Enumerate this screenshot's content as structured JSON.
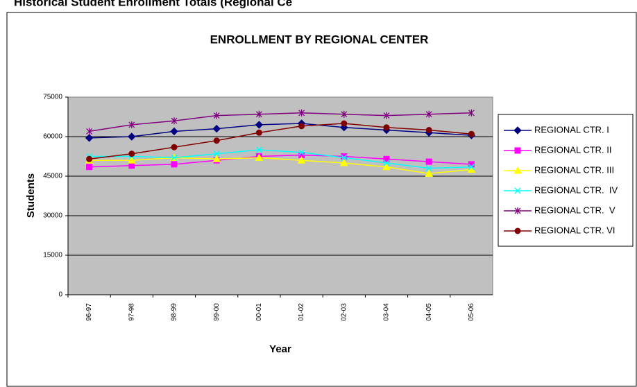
{
  "header": {
    "caption": "Historical Student Enrollment Totals (Regional Ce"
  },
  "chart_data": {
    "type": "line",
    "title": "ENROLLMENT BY REGIONAL CENTER",
    "x_label": "Year",
    "y_label": "Students",
    "categories": [
      "96-97",
      "97-98",
      "98-99",
      "99-00",
      "00-01",
      "01-02",
      "02-03",
      "03-04",
      "04-05",
      "05-06"
    ],
    "ylim": [
      0,
      75000
    ],
    "yticks": [
      0,
      15000,
      30000,
      45000,
      60000,
      75000
    ],
    "grid": true,
    "legend": "right",
    "series": [
      {
        "name": "REGIONAL CTR. I",
        "color": "#000080",
        "marker": "diamond",
        "values": [
          59500,
          60000,
          62000,
          63000,
          64500,
          65000,
          63500,
          62500,
          61500,
          60500
        ]
      },
      {
        "name": "REGIONAL CTR. II",
        "color": "#ff00ff",
        "marker": "square",
        "values": [
          48500,
          49000,
          49500,
          51000,
          52500,
          53000,
          52500,
          51500,
          50500,
          49500
        ]
      },
      {
        "name": "REGIONAL CTR. III",
        "color": "#ffff00",
        "marker": "triangle",
        "values": [
          51000,
          51000,
          52000,
          51500,
          52000,
          51000,
          50000,
          48500,
          46000,
          47500
        ]
      },
      {
        "name": "REGIONAL CTR.  IV",
        "color": "#00ffff",
        "marker": "x",
        "values": [
          52500,
          52500,
          52000,
          53500,
          55000,
          54000,
          52000,
          50000,
          48000,
          48500
        ]
      },
      {
        "name": "REGIONAL CTR.  V",
        "color": "#800080",
        "marker": "asterisk",
        "values": [
          62000,
          64500,
          66000,
          68000,
          68500,
          69000,
          68500,
          68000,
          68500,
          69000
        ]
      },
      {
        "name": "REGIONAL CTR. VI",
        "color": "#800000",
        "marker": "circle",
        "values": [
          51500,
          53500,
          56000,
          58500,
          61500,
          64000,
          65000,
          63500,
          62500,
          61000
        ]
      }
    ]
  }
}
